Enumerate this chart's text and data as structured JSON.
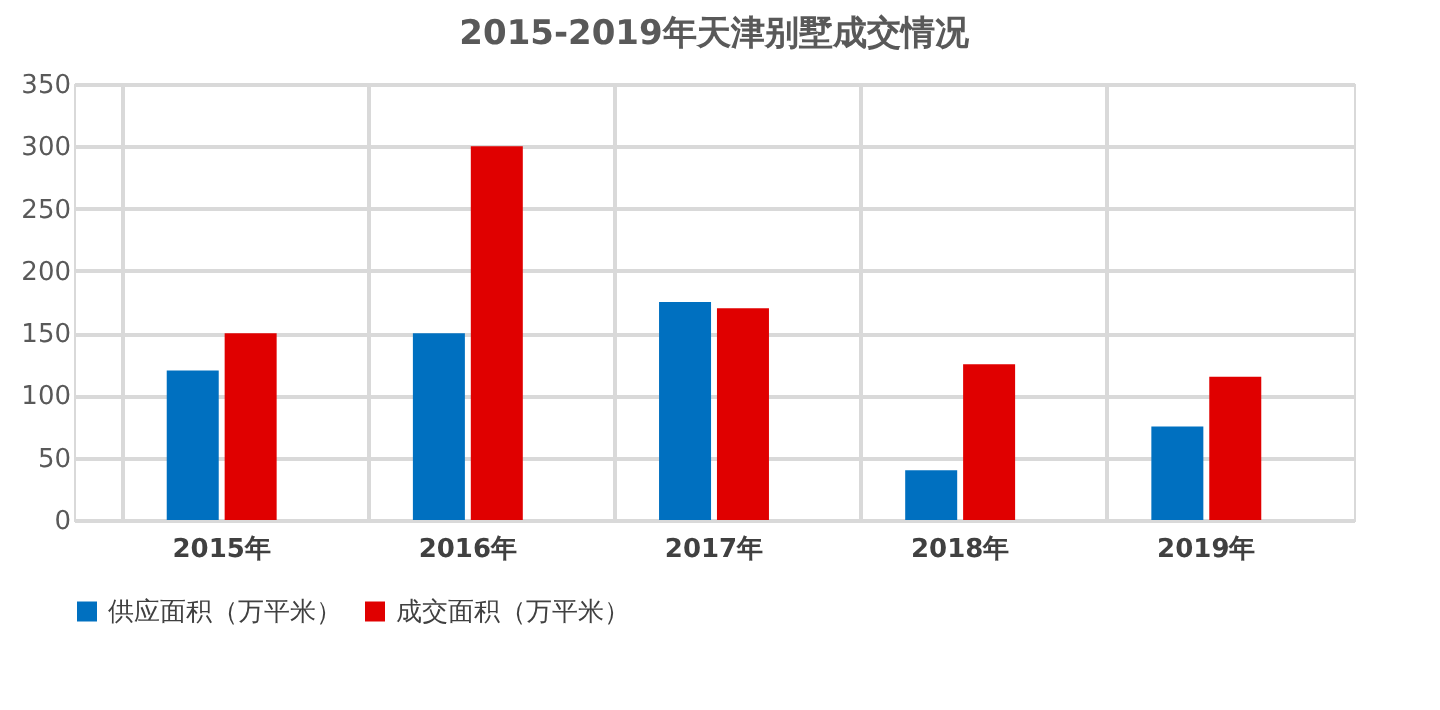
{
  "chart_data": {
    "type": "bar",
    "title": "2015-2019年天津别墅成交情况",
    "categories": [
      "2015年",
      "2016年",
      "2017年",
      "2018年",
      "2019年"
    ],
    "series": [
      {
        "name": "供应面积（万平米）",
        "color": "#0070c0",
        "values": [
          120,
          150,
          175,
          40,
          75
        ]
      },
      {
        "name": "成交面积（万平米）",
        "color": "#e00000",
        "values": [
          150,
          300,
          170,
          125,
          115
        ]
      }
    ],
    "ylim": [
      0,
      350
    ],
    "yticks": [
      0,
      50,
      100,
      150,
      200,
      250,
      300,
      350
    ],
    "grid": true,
    "legend": "bottom"
  }
}
